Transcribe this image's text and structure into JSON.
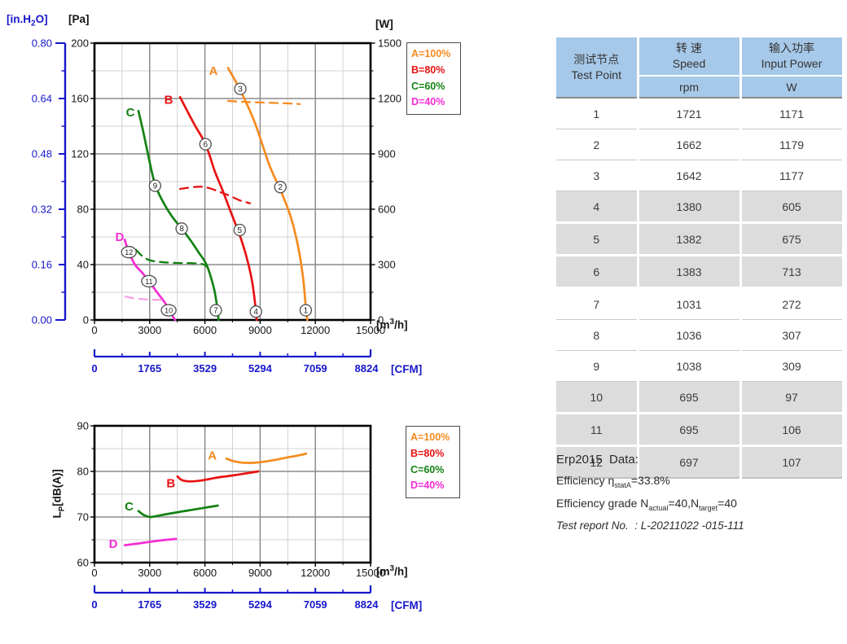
{
  "colors": {
    "orange": "#F68B1F",
    "red": "#E81212",
    "green": "#128212",
    "magenta": "#F42BD4",
    "magenta_dash": "#F8A3E2",
    "axis_blue": "#1616CC",
    "grid_major": "#8C8C8C",
    "grid_minor": "#D2D2D2",
    "table_header_bg": "#A7C9E9",
    "table_row_alt_bg": "#DCDCDC"
  },
  "legend": {
    "entries": [
      {
        "label": "A=100%",
        "color": "orange"
      },
      {
        "label": "B=80%",
        "color": "red"
      },
      {
        "label": "C=60%",
        "color": "green"
      },
      {
        "label": "D=40%",
        "color": "magenta"
      }
    ]
  },
  "chart_data": [
    {
      "id": "pressure-power-chart",
      "type": "line",
      "x": {
        "label_parts": [
          "[m",
          "3",
          "/h]"
        ],
        "ticks": [
          0,
          3000,
          6000,
          9000,
          12000,
          15000
        ],
        "max": 15000,
        "minor_step": 1500
      },
      "y_pa": {
        "label": "[Pa]",
        "ticks": [
          0,
          40,
          80,
          120,
          160,
          200
        ],
        "max": 200,
        "minor_step": 20
      },
      "y_inh2o": {
        "label_parts": [
          "[in.H",
          "2",
          "O]"
        ],
        "ticks": [
          "0.00",
          "0.16",
          "0.32",
          "0.48",
          "0.64",
          "0.80"
        ]
      },
      "y_w": {
        "label": "[W]",
        "ticks": [
          0,
          300,
          600,
          900,
          1200,
          1500
        ],
        "max": 1500,
        "minor_step": 150
      },
      "cfm": {
        "label": "[CFM]",
        "ticks": [
          0,
          1765,
          3529,
          5294,
          7059,
          8824
        ]
      },
      "series": [
        {
          "name": "A",
          "label": "A",
          "axis": "pa",
          "style": "solid",
          "color": "orange",
          "label_at": [
            6460,
            180
          ],
          "points": [
            [
              7260,
              182
            ],
            [
              7920,
              166
            ],
            [
              8700,
              143
            ],
            [
              9500,
              112
            ],
            [
              10100,
              94
            ],
            [
              10650,
              75
            ],
            [
              11050,
              54
            ],
            [
              11320,
              32
            ],
            [
              11480,
              10
            ],
            [
              11560,
              0
            ]
          ]
        },
        {
          "name": "B",
          "label": "B",
          "axis": "pa",
          "style": "solid",
          "color": "red",
          "label_at": [
            4030,
            159
          ],
          "points": [
            [
              4650,
              161
            ],
            [
              5400,
              142
            ],
            [
              6030,
              127
            ],
            [
              6550,
              107
            ],
            [
              6950,
              94
            ],
            [
              7350,
              80
            ],
            [
              7700,
              68
            ],
            [
              7950,
              59
            ],
            [
              8250,
              46
            ],
            [
              8550,
              29
            ],
            [
              8760,
              8
            ],
            [
              8820,
              0
            ]
          ]
        },
        {
          "name": "C",
          "label": "C",
          "axis": "pa",
          "style": "solid",
          "color": "green",
          "label_at": [
            1950,
            150
          ],
          "points": [
            [
              2390,
              151
            ],
            [
              2650,
              136
            ],
            [
              2950,
              117
            ],
            [
              3290,
              98
            ],
            [
              3700,
              86
            ],
            [
              4200,
              75
            ],
            [
              4740,
              66
            ],
            [
              5250,
              57
            ],
            [
              5650,
              49
            ],
            [
              6050,
              41
            ],
            [
              6300,
              32
            ],
            [
              6520,
              21
            ],
            [
              6680,
              8
            ],
            [
              6740,
              0
            ]
          ]
        },
        {
          "name": "D",
          "label": "D",
          "axis": "pa",
          "style": "solid",
          "color": "magenta",
          "label_at": [
            1370,
            60
          ],
          "points": [
            [
              1640,
              58
            ],
            [
              1870,
              49
            ],
            [
              2200,
              40
            ],
            [
              2600,
              34
            ],
            [
              2960,
              28
            ],
            [
              3400,
              20
            ],
            [
              3850,
              12
            ],
            [
              4150,
              5
            ],
            [
              4380,
              0
            ]
          ]
        },
        {
          "name": "A-power",
          "axis": "w",
          "style": "dashed",
          "color": "orange",
          "points": [
            [
              7260,
              1187
            ],
            [
              8300,
              1181
            ],
            [
              9500,
              1177
            ],
            [
              10400,
              1174
            ],
            [
              11150,
              1170
            ]
          ]
        },
        {
          "name": "B-power",
          "axis": "w",
          "style": "dashed",
          "color": "red",
          "points": [
            [
              4650,
              710
            ],
            [
              5300,
              719
            ],
            [
              5800,
              722
            ],
            [
              6250,
              714
            ],
            [
              6800,
              694
            ],
            [
              7300,
              675
            ],
            [
              7900,
              648
            ],
            [
              8450,
              632
            ]
          ]
        },
        {
          "name": "C-power",
          "axis": "w",
          "style": "dashed",
          "color": "green",
          "points": [
            [
              2260,
              380
            ],
            [
              2600,
              346
            ],
            [
              3000,
              324
            ],
            [
              3600,
              314
            ],
            [
              4500,
              309
            ],
            [
              5400,
              307
            ],
            [
              6000,
              298
            ],
            [
              6250,
              262
            ]
          ]
        },
        {
          "name": "D-power",
          "axis": "w",
          "style": "dashed",
          "color": "magenta_dash",
          "points": [
            [
              1680,
              127
            ],
            [
              2100,
              118
            ],
            [
              2600,
              113
            ],
            [
              3100,
              110
            ],
            [
              3630,
              109
            ]
          ]
        }
      ],
      "markers": [
        {
          "n": "1",
          "x": 11480,
          "y": 7
        },
        {
          "n": "2",
          "x": 10100,
          "y": 96
        },
        {
          "n": "3",
          "x": 7920,
          "y": 167
        },
        {
          "n": "4",
          "x": 8770,
          "y": 6
        },
        {
          "n": "5",
          "x": 7890,
          "y": 65
        },
        {
          "n": "6",
          "x": 6030,
          "y": 127
        },
        {
          "n": "7",
          "x": 6590,
          "y": 7
        },
        {
          "n": "8",
          "x": 4740,
          "y": 66
        },
        {
          "n": "9",
          "x": 3290,
          "y": 97
        },
        {
          "n": "10",
          "x": 4030,
          "y": 7
        },
        {
          "n": "11",
          "x": 2960,
          "y": 28
        },
        {
          "n": "12",
          "x": 1870,
          "y": 49
        }
      ]
    },
    {
      "id": "noise-chart",
      "type": "line",
      "x": {
        "label_parts": [
          "[m",
          "3",
          "/h]"
        ],
        "ticks": [
          0,
          3000,
          6000,
          9000,
          12000,
          15000
        ],
        "max": 15000,
        "minor_step": 1500
      },
      "y_db": {
        "label_parts": [
          "L",
          "P",
          "[dB(A)]"
        ],
        "ticks": [
          60,
          70,
          80,
          90
        ],
        "min": 60,
        "max": 90,
        "minor_step": 5
      },
      "cfm": {
        "label": "[CFM]",
        "ticks": [
          0,
          1765,
          3529,
          5294,
          7059,
          8824
        ]
      },
      "series": [
        {
          "name": "A-noise",
          "label": "A",
          "axis": "db",
          "style": "solid",
          "color": "orange",
          "label_at": [
            6400,
            83.5
          ],
          "points": [
            [
              7170,
              82.8
            ],
            [
              7600,
              82.2
            ],
            [
              8100,
              81.9
            ],
            [
              8700,
              81.9
            ],
            [
              9500,
              82.3
            ],
            [
              10400,
              83.0
            ],
            [
              11200,
              83.6
            ],
            [
              11500,
              83.9
            ]
          ]
        },
        {
          "name": "B-noise",
          "label": "B",
          "axis": "db",
          "style": "solid",
          "color": "red",
          "label_at": [
            4150,
            77.4
          ],
          "points": [
            [
              4510,
              78.9
            ],
            [
              4750,
              78.1
            ],
            [
              5200,
              77.8
            ],
            [
              5800,
              78.0
            ],
            [
              6600,
              78.6
            ],
            [
              7500,
              79.1
            ],
            [
              8300,
              79.6
            ],
            [
              8900,
              80.0
            ]
          ]
        },
        {
          "name": "C-noise",
          "label": "C",
          "axis": "db",
          "style": "solid",
          "color": "green",
          "label_at": [
            1880,
            72.3
          ],
          "points": [
            [
              2390,
              71.3
            ],
            [
              2700,
              70.4
            ],
            [
              3050,
              70.0
            ],
            [
              3600,
              70.4
            ],
            [
              4300,
              70.9
            ],
            [
              5200,
              71.5
            ],
            [
              6100,
              72.1
            ],
            [
              6700,
              72.5
            ]
          ]
        },
        {
          "name": "D-noise",
          "label": "D",
          "axis": "db",
          "style": "solid",
          "color": "magenta",
          "label_at": [
            1020,
            64.1
          ],
          "points": [
            [
              1650,
              63.8
            ],
            [
              2400,
              64.2
            ],
            [
              3300,
              64.7
            ],
            [
              4430,
              65.2
            ]
          ]
        }
      ]
    }
  ],
  "table": {
    "headers": {
      "col1_cn": "测试节点",
      "col1_en": "Test Point",
      "col2_cn": "转 速",
      "col2_en": "Speed",
      "col2_unit": "rpm",
      "col3_cn": "输入功率",
      "col3_en": "Input Power",
      "col3_unit": "W"
    },
    "rows": [
      {
        "point": "1",
        "speed": "1721",
        "power": "1171",
        "shaded": false
      },
      {
        "point": "2",
        "speed": "1662",
        "power": "1179",
        "shaded": false
      },
      {
        "point": "3",
        "speed": "1642",
        "power": "1177",
        "shaded": false
      },
      {
        "point": "4",
        "speed": "1380",
        "power": "605",
        "shaded": true
      },
      {
        "point": "5",
        "speed": "1382",
        "power": "675",
        "shaded": true
      },
      {
        "point": "6",
        "speed": "1383",
        "power": "713",
        "shaded": true
      },
      {
        "point": "7",
        "speed": "1031",
        "power": "272",
        "shaded": false
      },
      {
        "point": "8",
        "speed": "1036",
        "power": "307",
        "shaded": false
      },
      {
        "point": "9",
        "speed": "1038",
        "power": "309",
        "shaded": false
      },
      {
        "point": "10",
        "speed": "695",
        "power": "97",
        "shaded": true
      },
      {
        "point": "11",
        "speed": "695",
        "power": "106",
        "shaded": true
      },
      {
        "point": "12",
        "speed": "697",
        "power": "107",
        "shaded": true
      }
    ]
  },
  "erp": {
    "title": "Erp2015  Data:",
    "line2_prefix": "Efficiency η",
    "line2_sub": "statA",
    "line2_suffix": "=33.8%",
    "line3_prefix": "Efficiency grade N",
    "line3_sub1": "actual",
    "line3_mid": "=40,N",
    "line3_sub2": "target",
    "line3_suffix": "=40",
    "line4": "Test report No.  : L-20211022 -015-111"
  }
}
